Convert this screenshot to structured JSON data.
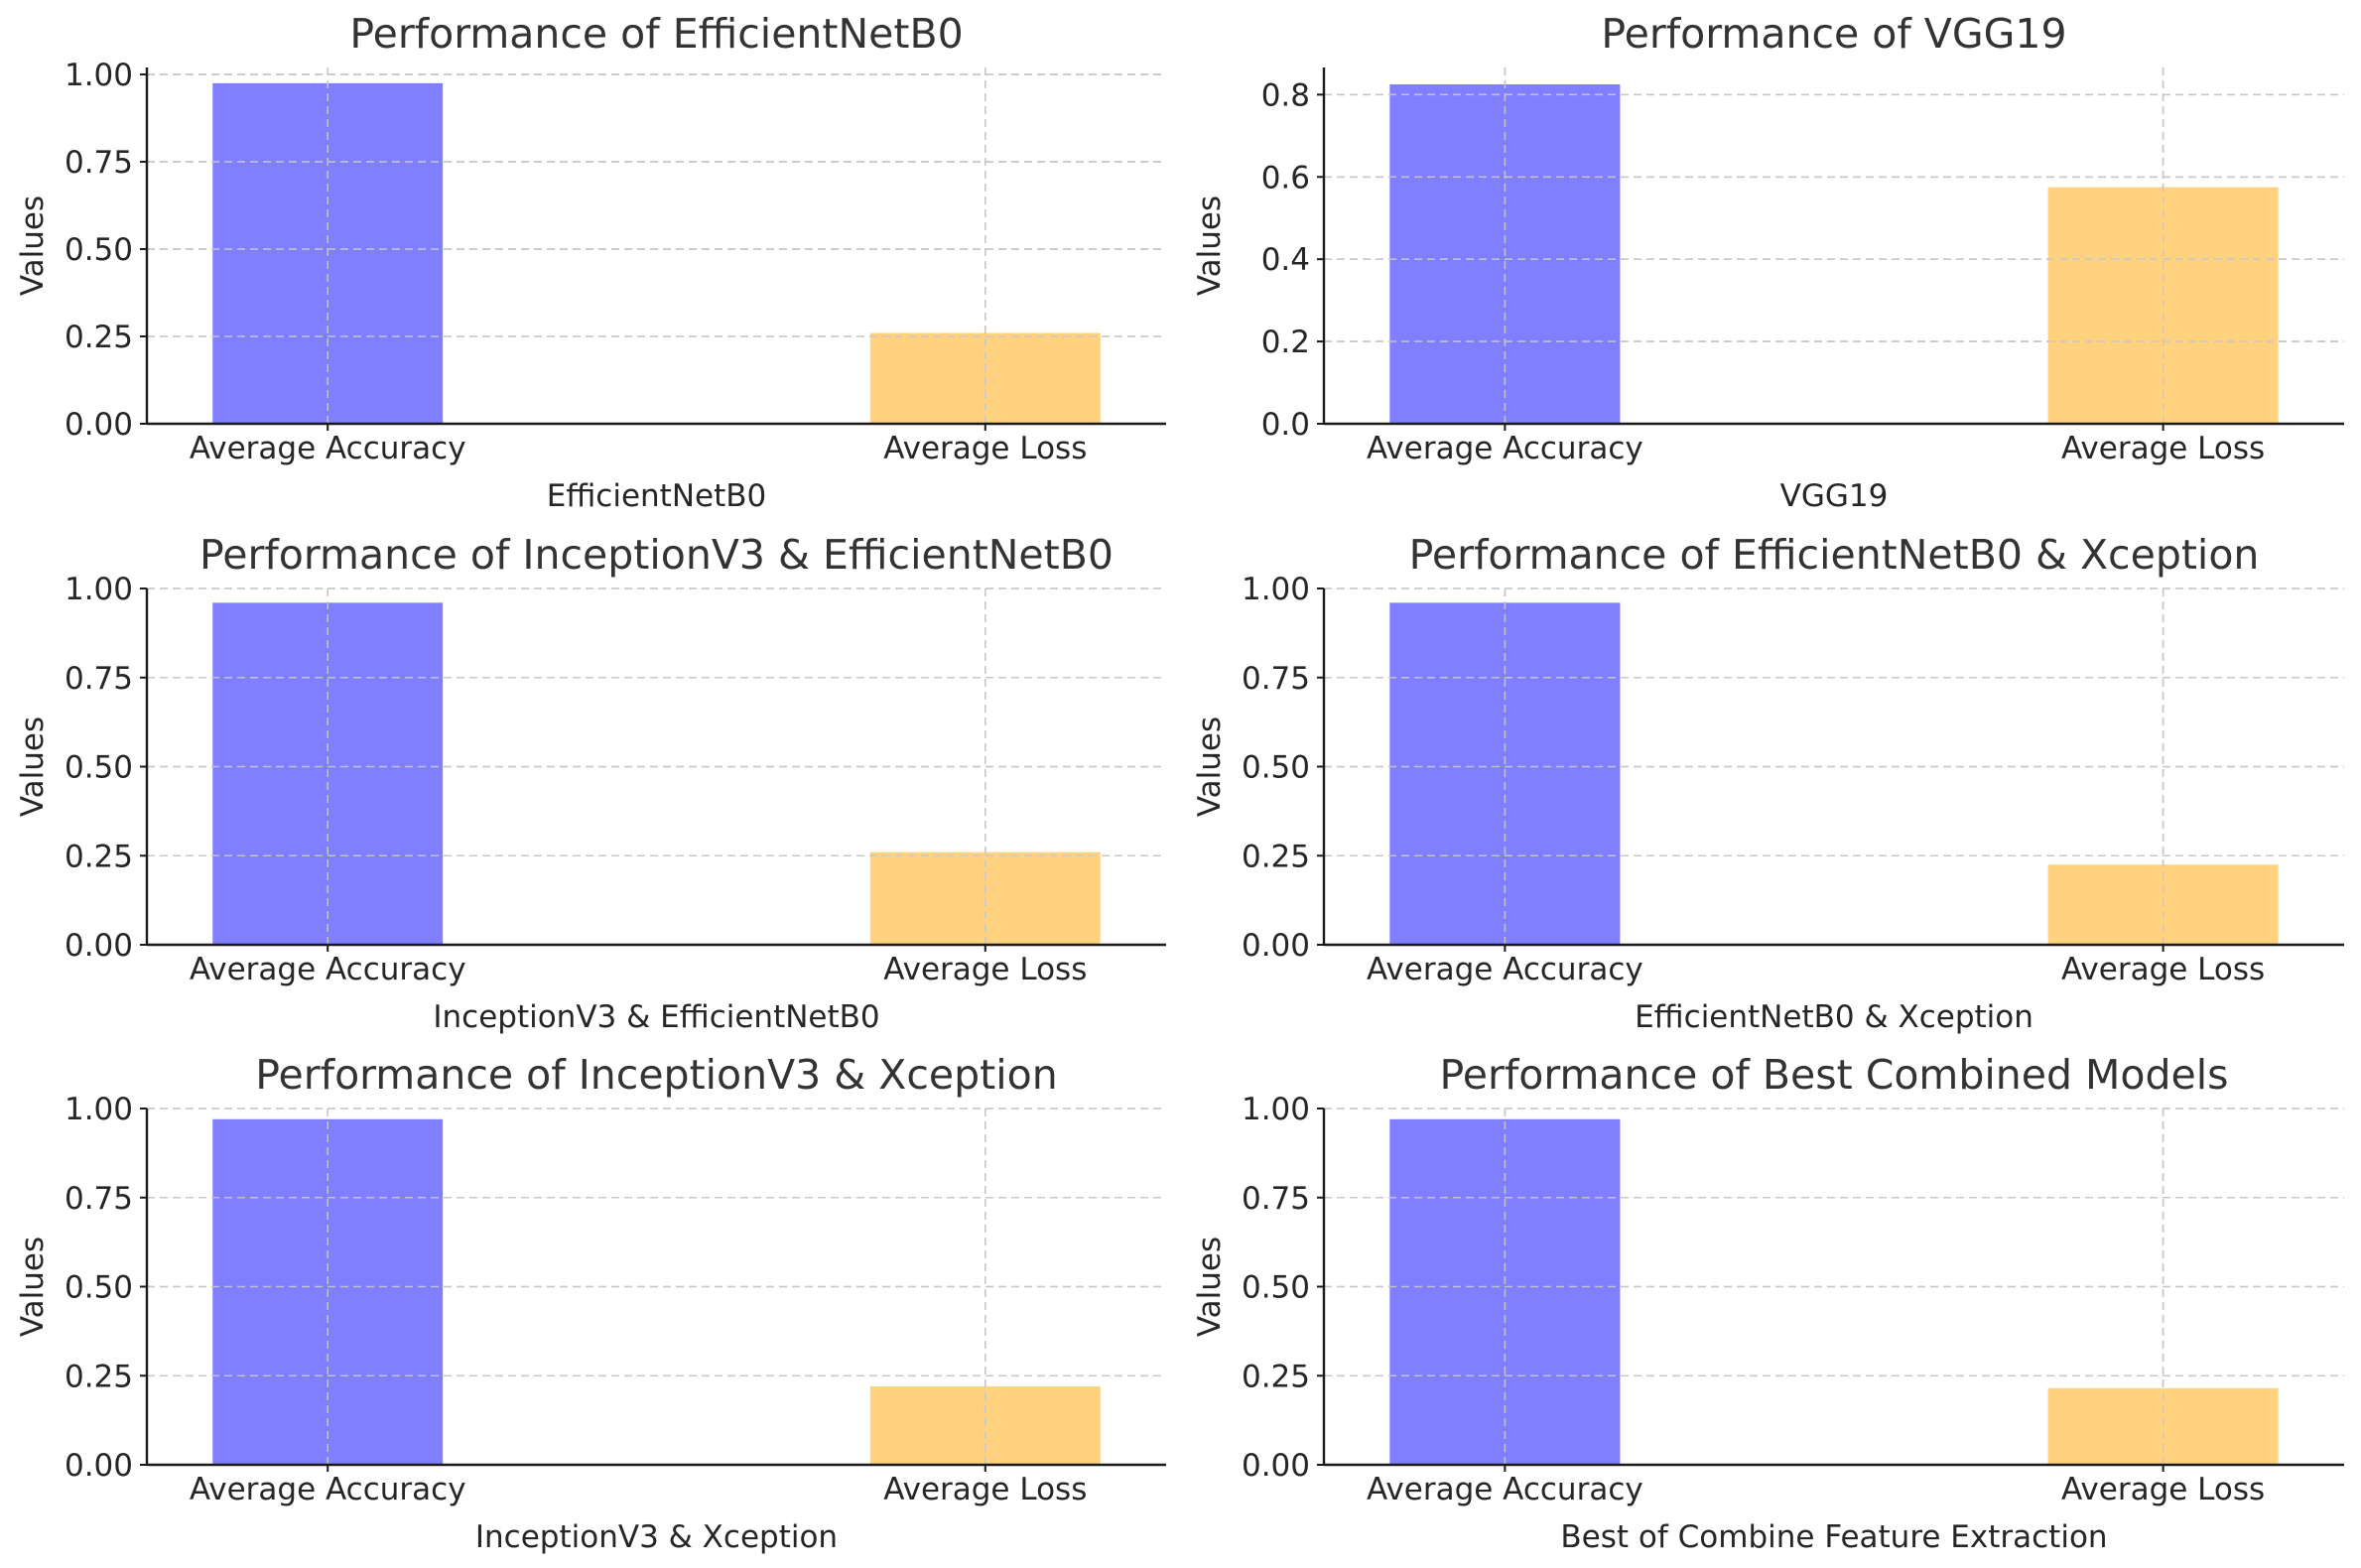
{
  "chart_data": [
    {
      "type": "bar",
      "title": "Performance of EfficientNetB0",
      "xlabel": "EfficientNetB0",
      "ylabel": "Values",
      "categories": [
        "Average Accuracy",
        "Average Loss"
      ],
      "values": [
        0.975,
        0.26
      ],
      "ylim": [
        0,
        1.02
      ],
      "yticks": [
        0.0,
        0.25,
        0.5,
        0.75,
        1.0
      ],
      "ytick_labels": [
        "0.00",
        "0.25",
        "0.50",
        "0.75",
        "1.00"
      ],
      "colors": [
        "#7f7fff",
        "#ffd280"
      ],
      "grid": true
    },
    {
      "type": "bar",
      "title": "Performance of VGG19",
      "xlabel": "VGG19",
      "ylabel": "Values",
      "categories": [
        "Average Accuracy",
        "Average Loss"
      ],
      "values": [
        0.825,
        0.575
      ],
      "ylim": [
        0,
        0.866
      ],
      "yticks": [
        0.0,
        0.2,
        0.4,
        0.6,
        0.8
      ],
      "ytick_labels": [
        "0.0",
        "0.2",
        "0.4",
        "0.6",
        "0.8"
      ],
      "colors": [
        "#7f7fff",
        "#ffd280"
      ],
      "grid": true
    },
    {
      "type": "bar",
      "title": "Performance of InceptionV3 & EfficientNetB0",
      "xlabel": "InceptionV3 & EfficientNetB0",
      "ylabel": "Values",
      "categories": [
        "Average Accuracy",
        "Average Loss"
      ],
      "values": [
        0.96,
        0.26
      ],
      "ylim": [
        0,
        1.0
      ],
      "yticks": [
        0.0,
        0.25,
        0.5,
        0.75,
        1.0
      ],
      "ytick_labels": [
        "0.00",
        "0.25",
        "0.50",
        "0.75",
        "1.00"
      ],
      "colors": [
        "#7f7fff",
        "#ffd280"
      ],
      "grid": true
    },
    {
      "type": "bar",
      "title": "Performance of EfficientNetB0 & Xception",
      "xlabel": "EfficientNetB0 & Xception",
      "ylabel": "Values",
      "categories": [
        "Average Accuracy",
        "Average Loss"
      ],
      "values": [
        0.96,
        0.225
      ],
      "ylim": [
        0,
        1.0
      ],
      "yticks": [
        0.0,
        0.25,
        0.5,
        0.75,
        1.0
      ],
      "ytick_labels": [
        "0.00",
        "0.25",
        "0.50",
        "0.75",
        "1.00"
      ],
      "colors": [
        "#7f7fff",
        "#ffd280"
      ],
      "grid": true
    },
    {
      "type": "bar",
      "title": "Performance of InceptionV3 & Xception",
      "xlabel": "InceptionV3 & Xception",
      "ylabel": "Values",
      "categories": [
        "Average Accuracy",
        "Average Loss"
      ],
      "values": [
        0.97,
        0.22
      ],
      "ylim": [
        0,
        1.0
      ],
      "yticks": [
        0.0,
        0.25,
        0.5,
        0.75,
        1.0
      ],
      "ytick_labels": [
        "0.00",
        "0.25",
        "0.50",
        "0.75",
        "1.00"
      ],
      "colors": [
        "#7f7fff",
        "#ffd280"
      ],
      "grid": true
    },
    {
      "type": "bar",
      "title": "Performance of Best Combined Models",
      "xlabel": "Best of Combine Feature Extraction",
      "ylabel": "Values",
      "categories": [
        "Average Accuracy",
        "Average Loss"
      ],
      "values": [
        0.97,
        0.215
      ],
      "ylim": [
        0,
        1.0
      ],
      "yticks": [
        0.0,
        0.25,
        0.5,
        0.75,
        1.0
      ],
      "ytick_labels": [
        "0.00",
        "0.25",
        "0.50",
        "0.75",
        "1.00"
      ],
      "colors": [
        "#7f7fff",
        "#ffd280"
      ],
      "grid": true
    }
  ]
}
